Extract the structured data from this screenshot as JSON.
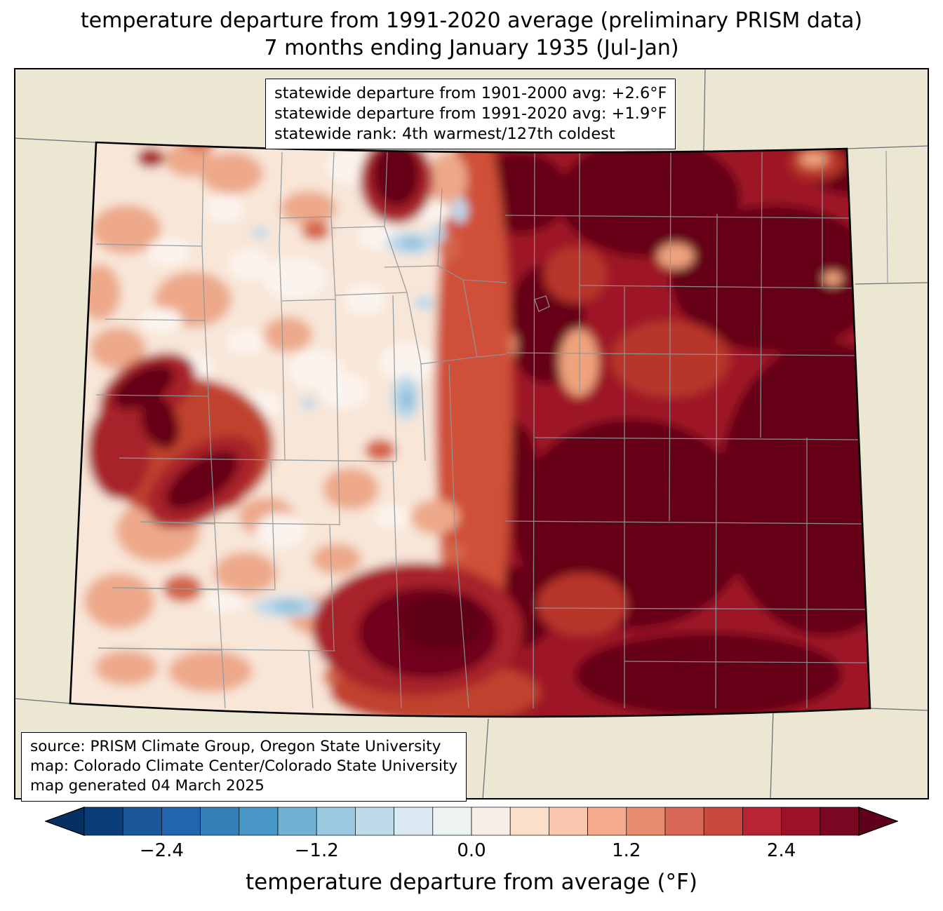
{
  "title": {
    "line1": "temperature departure from 1991-2020 average (preliminary PRISM data)",
    "line2": "7 months ending January 1935 (Jul-Jan)"
  },
  "stats_box": {
    "lines": [
      "statewide departure from 1901-2000 avg: +2.6°F",
      "statewide departure from 1991-2020 avg: +1.9°F",
      "statewide rank: 4th warmest/127th coldest"
    ]
  },
  "source_box": {
    "lines": [
      "source: PRISM Climate Group, Oregon State University",
      "map: Colorado Climate Center/Colorado State University",
      "map generated 04 March 2025"
    ]
  },
  "colorbar": {
    "label": "temperature departure from average (°F)",
    "range": [
      -3.0,
      3.0
    ],
    "step": 0.3,
    "under_color": "#053061",
    "over_color": "#60001b",
    "segment_colors": [
      "#0b3d78",
      "#1b5899",
      "#2166ac",
      "#3480b9",
      "#4997c6",
      "#72b1d3",
      "#9ac8e0",
      "#bedbea",
      "#d9e8f1",
      "#edf2f3",
      "#f9eee7",
      "#fbdfcb",
      "#f9c7ad",
      "#f3ab8c",
      "#e78d6f",
      "#d96856",
      "#c84a3f",
      "#b82431",
      "#9c1127",
      "#7a0622"
    ],
    "ticks": [
      {
        "value": -2.4,
        "label": "−2.4"
      },
      {
        "value": -1.2,
        "label": "−1.2"
      },
      {
        "value": 0.0,
        "label": "0.0"
      },
      {
        "value": 1.2,
        "label": "1.2"
      },
      {
        "value": 2.4,
        "label": "2.4"
      }
    ]
  },
  "map": {
    "background_color": "#ece7d3",
    "state_border_color": "#000000",
    "county_line_color": "#8e979c",
    "neighbor_line_color": "#6b7177",
    "darkest_fill": "#650019",
    "lightest_fill": "#f8e6d8"
  }
}
